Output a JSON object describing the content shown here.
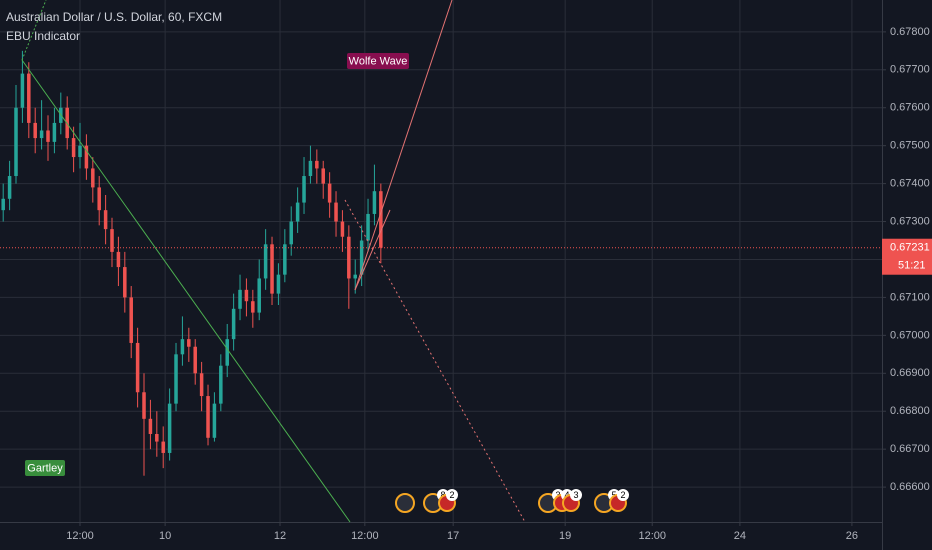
{
  "chart_data": {
    "type": "candlestick",
    "title": "Australian Dollar / U.S. Dollar, 60, FXCM",
    "indicator": "EBU Indicator",
    "annotations": [
      "Wolfe Wave",
      "Gartley"
    ],
    "countdown": "51:21",
    "up_color": "#26a69a",
    "down_color": "#ef5350",
    "grid": true,
    "candles": [
      [
        0.6733,
        0.674,
        0.673,
        0.6736
      ],
      [
        0.6736,
        0.6746,
        0.6733,
        0.6742
      ],
      [
        0.6742,
        0.6766,
        0.674,
        0.676
      ],
      [
        0.676,
        0.6775,
        0.6756,
        0.6769
      ],
      [
        0.6769,
        0.6772,
        0.6752,
        0.6756
      ],
      [
        0.6756,
        0.676,
        0.6748,
        0.6752
      ],
      [
        0.6752,
        0.6762,
        0.6749,
        0.6754
      ],
      [
        0.6754,
        0.6758,
        0.6746,
        0.6751
      ],
      [
        0.6751,
        0.676,
        0.6748,
        0.6756
      ],
      [
        0.6756,
        0.6764,
        0.6753,
        0.676
      ],
      [
        0.676,
        0.6763,
        0.6749,
        0.6752
      ],
      [
        0.6752,
        0.6755,
        0.6743,
        0.6747
      ],
      [
        0.6747,
        0.6756,
        0.6744,
        0.675
      ],
      [
        0.675,
        0.6753,
        0.6741,
        0.6744
      ],
      [
        0.6744,
        0.6747,
        0.6735,
        0.6739
      ],
      [
        0.6739,
        0.6742,
        0.6729,
        0.6733
      ],
      [
        0.6733,
        0.6737,
        0.6724,
        0.6728
      ],
      [
        0.6728,
        0.6731,
        0.6718,
        0.6722
      ],
      [
        0.6722,
        0.6726,
        0.6713,
        0.6718
      ],
      [
        0.6718,
        0.6722,
        0.6706,
        0.671
      ],
      [
        0.671,
        0.6713,
        0.6694,
        0.6698
      ],
      [
        0.6698,
        0.6702,
        0.6681,
        0.6685
      ],
      [
        0.6685,
        0.669,
        0.6663,
        0.6678
      ],
      [
        0.6678,
        0.6683,
        0.667,
        0.6674
      ],
      [
        0.6674,
        0.668,
        0.6668,
        0.6672
      ],
      [
        0.6672,
        0.6676,
        0.6665,
        0.6669
      ],
      [
        0.6669,
        0.6686,
        0.6667,
        0.6682
      ],
      [
        0.6682,
        0.6698,
        0.668,
        0.6695
      ],
      [
        0.6695,
        0.6705,
        0.6692,
        0.6699
      ],
      [
        0.6699,
        0.6702,
        0.6693,
        0.6697
      ],
      [
        0.6697,
        0.6699,
        0.6687,
        0.669
      ],
      [
        0.669,
        0.6693,
        0.668,
        0.6684
      ],
      [
        0.6684,
        0.6687,
        0.6671,
        0.6673
      ],
      [
        0.6673,
        0.6685,
        0.6672,
        0.6682
      ],
      [
        0.6682,
        0.6695,
        0.668,
        0.6692
      ],
      [
        0.6692,
        0.6703,
        0.6689,
        0.6699
      ],
      [
        0.6699,
        0.6711,
        0.6696,
        0.6707
      ],
      [
        0.6707,
        0.6716,
        0.6704,
        0.6712
      ],
      [
        0.6712,
        0.6715,
        0.6705,
        0.6709
      ],
      [
        0.6709,
        0.6712,
        0.6702,
        0.6706
      ],
      [
        0.6706,
        0.672,
        0.6704,
        0.6715
      ],
      [
        0.6715,
        0.6728,
        0.6712,
        0.6724
      ],
      [
        0.6724,
        0.6726,
        0.6708,
        0.6711
      ],
      [
        0.6711,
        0.6719,
        0.6708,
        0.6716
      ],
      [
        0.6716,
        0.6728,
        0.6714,
        0.6724
      ],
      [
        0.6724,
        0.6734,
        0.6721,
        0.673
      ],
      [
        0.673,
        0.6739,
        0.6727,
        0.6735
      ],
      [
        0.6735,
        0.6747,
        0.6732,
        0.6742
      ],
      [
        0.6742,
        0.675,
        0.674,
        0.6746
      ],
      [
        0.6746,
        0.6749,
        0.674,
        0.6744
      ],
      [
        0.6744,
        0.6746,
        0.6736,
        0.674
      ],
      [
        0.674,
        0.6743,
        0.6731,
        0.6735
      ],
      [
        0.6735,
        0.6738,
        0.6726,
        0.673
      ],
      [
        0.673,
        0.6733,
        0.6722,
        0.6726
      ],
      [
        0.6726,
        0.6729,
        0.6707,
        0.6715
      ],
      [
        0.6715,
        0.672,
        0.6711,
        0.6716
      ],
      [
        0.6716,
        0.6729,
        0.6713,
        0.6725
      ],
      [
        0.6725,
        0.6736,
        0.6722,
        0.6732
      ],
      [
        0.6732,
        0.6745,
        0.6729,
        0.6738
      ],
      [
        0.6738,
        0.674,
        0.6719,
        0.67231
      ]
    ],
    "xlim": [
      0,
      137.8
    ],
    "xticks": [
      {
        "value": 12.5,
        "label": "12:00"
      },
      {
        "value": 25.8,
        "label": "10"
      },
      {
        "value": 43.75,
        "label": "12"
      },
      {
        "value": 57,
        "label": "12:00"
      },
      {
        "value": 70.8,
        "label": "17"
      },
      {
        "value": 88.3,
        "label": "19"
      },
      {
        "value": 101.9,
        "label": "12:00"
      },
      {
        "value": 115.6,
        "label": "24"
      },
      {
        "value": 133.1,
        "label": "26"
      }
    ],
    "ylim": [
      0.66508,
      0.67884
    ],
    "yticks": [
      {
        "value": 0.666,
        "label": "0.66600"
      },
      {
        "value": 0.667,
        "label": "0.66700"
      },
      {
        "value": 0.668,
        "label": "0.66800"
      },
      {
        "value": 0.669,
        "label": "0.66900"
      },
      {
        "value": 0.67,
        "label": "0.67000"
      },
      {
        "value": 0.671,
        "label": "0.67100"
      },
      {
        "value": 0.672,
        "label": "0.67200"
      },
      {
        "value": 0.673,
        "label": "0.67300"
      },
      {
        "value": 0.674,
        "label": "0.67400"
      },
      {
        "value": 0.675,
        "label": "0.67500"
      },
      {
        "value": 0.676,
        "label": "0.67600"
      },
      {
        "value": 0.677,
        "label": "0.67700"
      },
      {
        "value": 0.678,
        "label": "0.67800"
      }
    ],
    "events": [
      [],
      [
        "8",
        "2"
      ],
      [
        "3",
        "4",
        "3"
      ],
      [
        "5",
        "2"
      ]
    ]
  }
}
